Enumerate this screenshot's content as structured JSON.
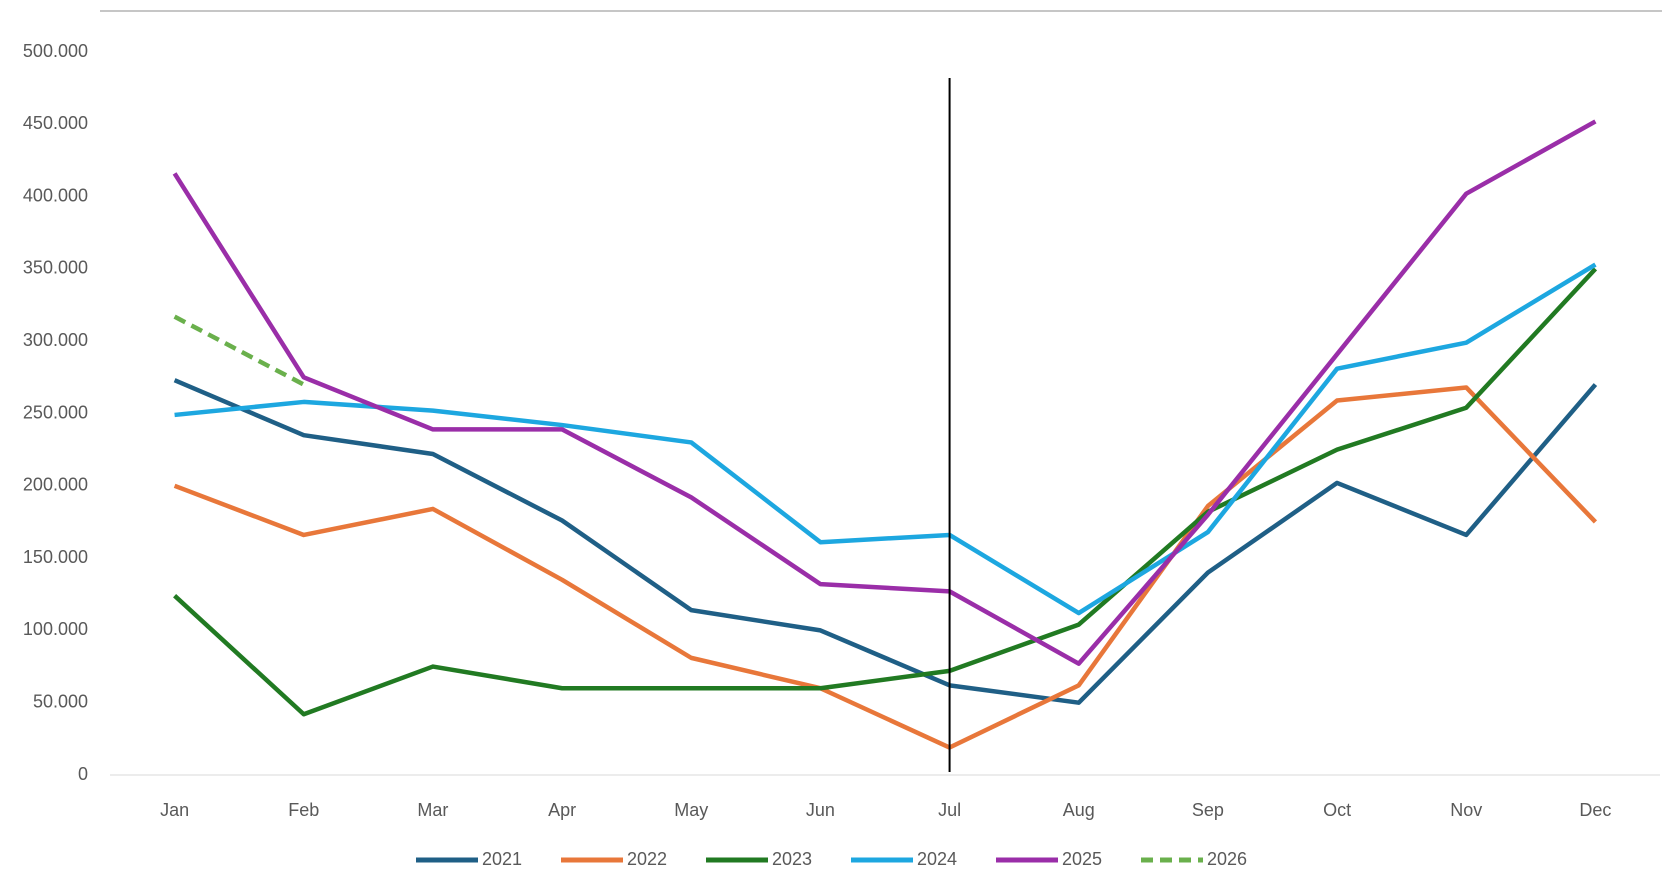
{
  "chart_data": {
    "type": "line",
    "categories": [
      "Jan",
      "Feb",
      "Mar",
      "Apr",
      "May",
      "Jun",
      "Jul",
      "Aug",
      "Sep",
      "Oct",
      "Nov",
      "Dec"
    ],
    "series": [
      {
        "name": "2021",
        "color": "#1f5f86",
        "values": [
          273000,
          235000,
          222000,
          176000,
          114000,
          100000,
          62000,
          50000,
          140000,
          202000,
          166000,
          270000
        ]
      },
      {
        "name": "2022",
        "color": "#e8773a",
        "values": [
          200000,
          166000,
          184000,
          135000,
          81000,
          60000,
          19000,
          62000,
          186000,
          259000,
          268000,
          175000
        ]
      },
      {
        "name": "2023",
        "color": "#217a22",
        "values": [
          124000,
          42000,
          75000,
          60000,
          60000,
          60000,
          72000,
          104000,
          182000,
          225000,
          254000,
          350000
        ]
      },
      {
        "name": "2024",
        "color": "#1da7e0",
        "values": [
          249000,
          258000,
          252000,
          242000,
          230000,
          161000,
          166000,
          112000,
          168000,
          281000,
          299000,
          353000
        ]
      },
      {
        "name": "2025",
        "color": "#9a2ea8",
        "values": [
          416000,
          275000,
          239000,
          239000,
          192000,
          132000,
          127000,
          77000,
          180000,
          291000,
          402000,
          452000
        ]
      },
      {
        "name": "2026",
        "color": "#6ab04c",
        "dashed": true,
        "values": [
          317000,
          270000,
          null,
          null,
          null,
          null,
          null,
          null,
          null,
          null,
          null,
          null
        ]
      }
    ],
    "ylim": [
      0,
      500000
    ],
    "yticks": [
      0,
      {
        "value": 50000,
        "label": "50.000"
      },
      {
        "value": 100000,
        "label": "100.000"
      },
      {
        "value": 150000,
        "label": "150.000"
      },
      {
        "value": 200000,
        "label": "200.000"
      },
      {
        "value": 250000,
        "label": "250.000"
      },
      {
        "value": 300000,
        "label": "300.000"
      },
      {
        "value": 350000,
        "label": "350.000"
      },
      {
        "value": 400000,
        "label": "400.000"
      },
      {
        "value": 450000,
        "label": "450.000"
      },
      {
        "value": 500000,
        "label": "500.000"
      }
    ],
    "grid": false,
    "legend": "bottom"
  }
}
